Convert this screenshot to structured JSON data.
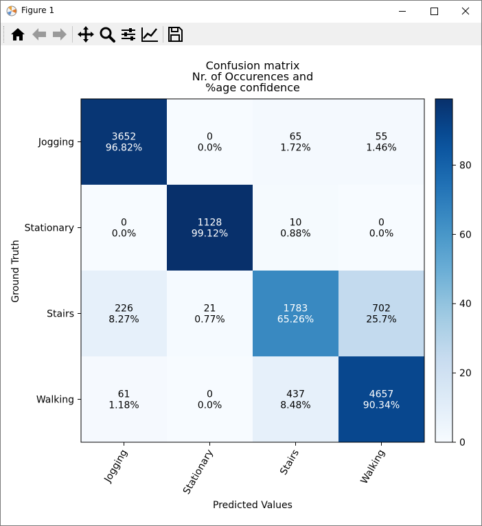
{
  "window": {
    "title": "Figure 1"
  },
  "toolbar": {
    "buttons": [
      {
        "name": "home-icon"
      },
      {
        "name": "back-icon"
      },
      {
        "name": "forward-icon"
      },
      {
        "name": "pan-icon"
      },
      {
        "name": "zoom-icon"
      },
      {
        "name": "configure-subplots-icon"
      },
      {
        "name": "edit-axis-icon"
      },
      {
        "name": "save-icon"
      }
    ]
  },
  "chart_data": {
    "type": "heatmap",
    "title": "Confusion matrix\nNr. of Occurences and\n%age confidence",
    "xlabel": "Predicted Values",
    "ylabel": "Ground Truth",
    "x_categories": [
      "Jogging",
      "Stationary",
      "Stairs",
      "Walking"
    ],
    "y_categories": [
      "Jogging",
      "Stationary",
      "Stairs",
      "Walking"
    ],
    "counts": [
      [
        3652,
        0,
        65,
        55
      ],
      [
        0,
        1128,
        10,
        0
      ],
      [
        226,
        21,
        1783,
        702
      ],
      [
        61,
        0,
        437,
        4657
      ]
    ],
    "percent_labels": [
      [
        "96.82%",
        "0.0%",
        "1.72%",
        "1.46%"
      ],
      [
        "0.0%",
        "99.12%",
        "0.88%",
        "0.0%"
      ],
      [
        "8.27%",
        "0.77%",
        "65.26%",
        "25.7%"
      ],
      [
        "1.18%",
        "0.0%",
        "8.48%",
        "90.34%"
      ]
    ],
    "percent_values": [
      [
        96.82,
        0.0,
        1.72,
        1.46
      ],
      [
        0.0,
        99.12,
        0.88,
        0.0
      ],
      [
        8.27,
        0.77,
        65.26,
        25.7
      ],
      [
        1.18,
        0.0,
        8.48,
        90.34
      ]
    ],
    "colormap": "Blues",
    "colorbar": {
      "min": 0,
      "max": 99.12,
      "ticks": [
        0,
        20,
        40,
        60,
        80
      ]
    }
  }
}
